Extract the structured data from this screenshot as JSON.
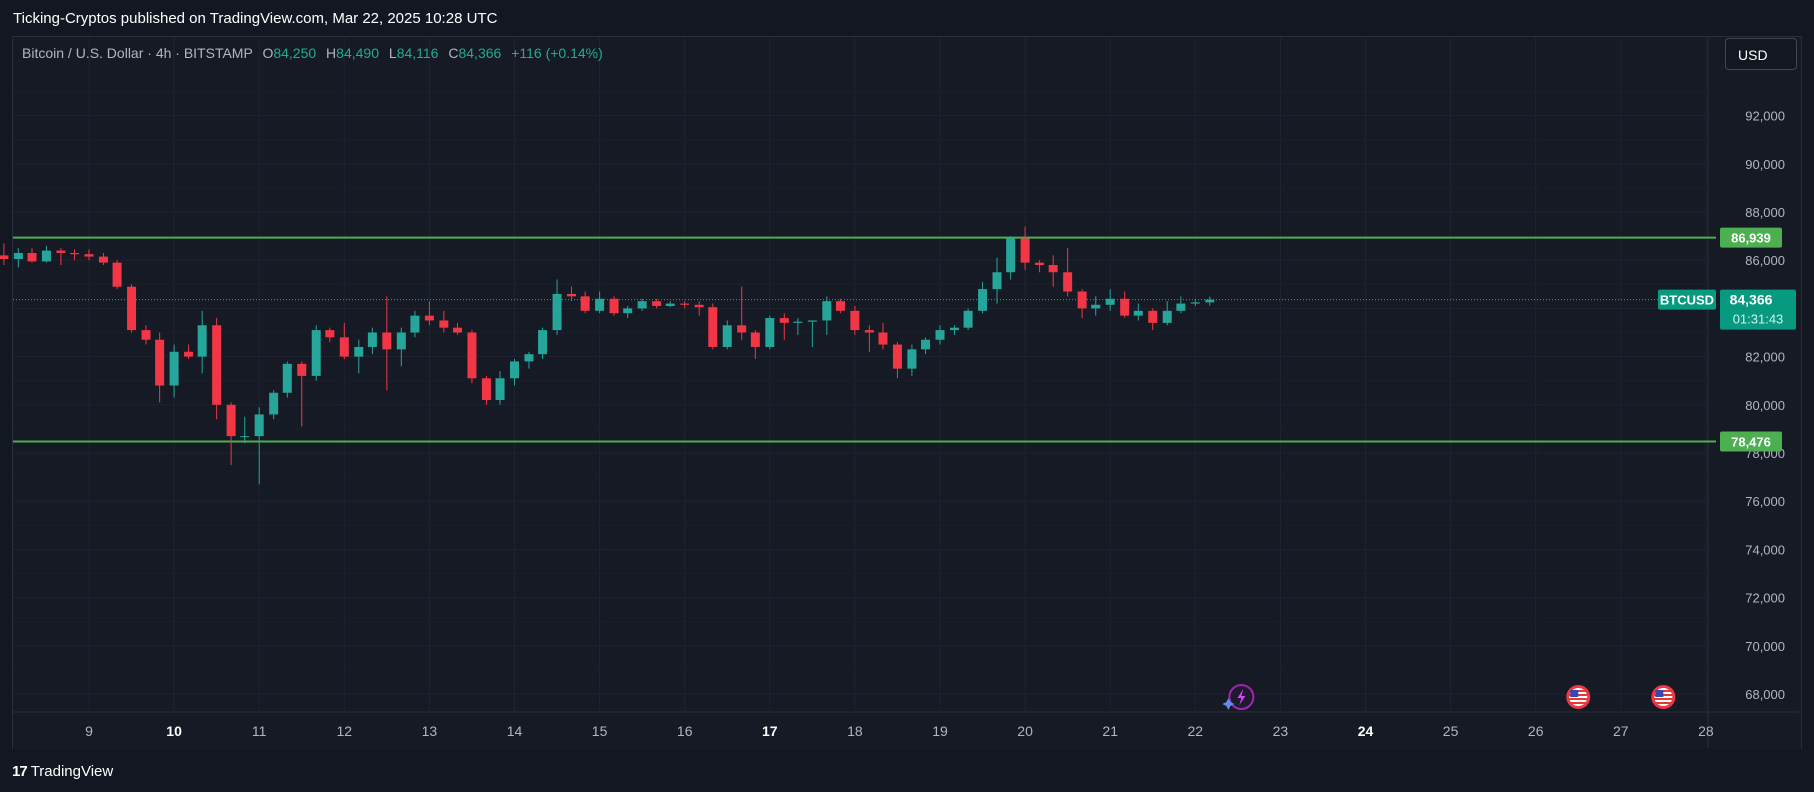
{
  "header": {
    "published_text": "Ticking-Cryptos published on TradingView.com, Mar 22, 2025 10:28 UTC"
  },
  "legend": {
    "symbol_text": "Bitcoin / U.S. Dollar · 4h · BITSTAMP",
    "open_label": "O",
    "open_value": "84,250",
    "high_label": "H",
    "high_value": "84,490",
    "low_label": "L",
    "low_value": "84,116",
    "close_label": "C",
    "close_value": "84,366",
    "change_text": "+116 (+0.14%)"
  },
  "currency_button": {
    "label": "USD"
  },
  "footer": {
    "brand": "TradingView",
    "logo_glyph": "17"
  },
  "colors": {
    "background": "#161a25",
    "grid": "#1f2330",
    "bull": "#26a69a",
    "bear": "#f23645",
    "level_line": "#4caf50",
    "last_price_tag": "#089981",
    "axis_text": "#b2b5be"
  },
  "icons": [
    "lightning-event-icon",
    "us-flag-event-icon",
    "us-flag-event-icon"
  ],
  "chart_data": {
    "type": "candlestick",
    "interval": "4h",
    "y_axis": {
      "ticks": [
        68000,
        70000,
        72000,
        74000,
        76000,
        78000,
        80000,
        82000,
        84000,
        86000,
        88000,
        90000,
        92000
      ],
      "tick_labels": [
        "68,000",
        "70,000",
        "72,000",
        "74,000",
        "76,000",
        "78,000",
        "80,000",
        "82,000",
        "84,000",
        "86,000",
        "88,000",
        "90,000",
        "92,000"
      ],
      "range": [
        67000,
        94000
      ],
      "side": "right"
    },
    "x_axis": {
      "ticks": [
        "9",
        "10",
        "11",
        "12",
        "13",
        "14",
        "15",
        "16",
        "17",
        "18",
        "19",
        "20",
        "21",
        "22",
        "23",
        "24",
        "25",
        "26",
        "27",
        "28"
      ],
      "bold_ticks": [
        "10",
        "17",
        "24"
      ],
      "range_days": [
        8.1,
        28.1
      ]
    },
    "grid": true,
    "horizontal_levels": [
      {
        "value": 86939,
        "label": "86,939"
      },
      {
        "value": 78476,
        "label": "78,476"
      }
    ],
    "last_price": {
      "symbol": "BTCUSD",
      "value": 84366,
      "label": "84,366",
      "countdown": "01:31:43"
    },
    "events": [
      {
        "day": 22.33,
        "kind": "lightning"
      },
      {
        "day": 26.5,
        "kind": "us-flag"
      },
      {
        "day": 27.5,
        "kind": "us-flag"
      }
    ],
    "candles": [
      [
        8.0,
        86200,
        86700,
        85800,
        86050
      ],
      [
        8.17,
        86050,
        86500,
        85700,
        86300
      ],
      [
        8.33,
        86300,
        86500,
        85900,
        85950
      ],
      [
        8.5,
        85950,
        86600,
        85900,
        86400
      ],
      [
        8.67,
        86400,
        86500,
        85800,
        86300
      ],
      [
        8.83,
        86300,
        86450,
        86000,
        86250
      ],
      [
        9.0,
        86250,
        86450,
        86000,
        86150
      ],
      [
        9.17,
        86150,
        86300,
        85800,
        85900
      ],
      [
        9.33,
        85900,
        86000,
        84800,
        84900
      ],
      [
        9.5,
        84900,
        85000,
        83000,
        83100
      ],
      [
        9.67,
        83100,
        83300,
        82500,
        82700
      ],
      [
        9.83,
        82700,
        83000,
        80100,
        80800
      ],
      [
        10.0,
        80800,
        82500,
        80300,
        82200
      ],
      [
        10.17,
        82200,
        82500,
        81900,
        82000
      ],
      [
        10.33,
        82000,
        83900,
        81300,
        83300
      ],
      [
        10.5,
        83300,
        83600,
        79400,
        80000
      ],
      [
        10.67,
        80000,
        80100,
        77500,
        78700
      ],
      [
        10.83,
        78700,
        79500,
        78400,
        78700
      ],
      [
        11.0,
        78700,
        79900,
        76700,
        79600
      ],
      [
        11.17,
        79600,
        80600,
        79400,
        80500
      ],
      [
        11.33,
        80500,
        81800,
        80300,
        81700
      ],
      [
        11.5,
        81700,
        81800,
        79100,
        81200
      ],
      [
        11.67,
        81200,
        83300,
        81000,
        83100
      ],
      [
        11.83,
        83100,
        83200,
        82600,
        82800
      ],
      [
        12.0,
        82800,
        83400,
        81900,
        82000
      ],
      [
        12.17,
        82000,
        82700,
        81300,
        82400
      ],
      [
        12.33,
        82400,
        83200,
        82100,
        83000
      ],
      [
        12.5,
        83000,
        84500,
        80600,
        82300
      ],
      [
        12.67,
        82300,
        83200,
        81600,
        83000
      ],
      [
        12.83,
        83000,
        83900,
        82800,
        83700
      ],
      [
        13.0,
        83700,
        84300,
        83300,
        83500
      ],
      [
        13.17,
        83500,
        83900,
        83000,
        83200
      ],
      [
        13.33,
        83200,
        83400,
        82900,
        83000
      ],
      [
        13.5,
        83000,
        83100,
        80900,
        81100
      ],
      [
        13.67,
        81100,
        81200,
        80000,
        80200
      ],
      [
        13.83,
        80200,
        81400,
        80000,
        81100
      ],
      [
        14.0,
        81100,
        81900,
        80800,
        81800
      ],
      [
        14.17,
        81800,
        82200,
        81500,
        82100
      ],
      [
        14.33,
        82100,
        83200,
        81900,
        83100
      ],
      [
        14.5,
        83100,
        85200,
        82900,
        84600
      ],
      [
        14.67,
        84600,
        84900,
        84300,
        84500
      ],
      [
        14.83,
        84500,
        84700,
        83800,
        83900
      ],
      [
        15.0,
        83900,
        84700,
        83800,
        84400
      ],
      [
        15.17,
        84400,
        84500,
        83700,
        83800
      ],
      [
        15.33,
        83800,
        84100,
        83600,
        84000
      ],
      [
        15.5,
        84000,
        84400,
        83900,
        84300
      ],
      [
        15.67,
        84300,
        84400,
        84000,
        84100
      ],
      [
        15.83,
        84100,
        84300,
        84050,
        84200
      ],
      [
        16.0,
        84200,
        84300,
        84000,
        84150
      ],
      [
        16.17,
        84150,
        84300,
        83700,
        84050
      ],
      [
        16.33,
        84050,
        84200,
        82300,
        82400
      ],
      [
        16.5,
        82400,
        83500,
        82300,
        83300
      ],
      [
        16.67,
        83300,
        84900,
        82700,
        83000
      ],
      [
        16.83,
        83000,
        83100,
        81900,
        82400
      ],
      [
        17.0,
        82400,
        83700,
        82300,
        83600
      ],
      [
        17.17,
        83600,
        83800,
        82700,
        83400
      ],
      [
        17.33,
        83400,
        83600,
        82900,
        83450
      ],
      [
        17.5,
        83450,
        83500,
        82400,
        83500
      ],
      [
        17.67,
        83500,
        84500,
        82900,
        84300
      ],
      [
        17.83,
        84300,
        84400,
        83800,
        83900
      ],
      [
        18.0,
        83900,
        84100,
        82900,
        83100
      ],
      [
        18.17,
        83100,
        83300,
        82200,
        83000
      ],
      [
        18.33,
        83000,
        83400,
        82300,
        82500
      ],
      [
        18.5,
        82500,
        82600,
        81100,
        81500
      ],
      [
        18.67,
        81500,
        82500,
        81200,
        82300
      ],
      [
        18.83,
        82300,
        82800,
        82100,
        82700
      ],
      [
        19.0,
        82700,
        83300,
        82500,
        83100
      ],
      [
        19.17,
        83100,
        83300,
        82900,
        83200
      ],
      [
        19.33,
        83200,
        84000,
        83100,
        83900
      ],
      [
        19.5,
        83900,
        85100,
        83800,
        84800
      ],
      [
        19.67,
        84800,
        86100,
        84200,
        85500
      ],
      [
        19.83,
        85500,
        87000,
        85200,
        86900
      ],
      [
        20.0,
        86900,
        87400,
        85600,
        85900
      ],
      [
        20.17,
        85900,
        86000,
        85500,
        85800
      ],
      [
        20.33,
        85800,
        86200,
        84900,
        85500
      ],
      [
        20.5,
        85500,
        86500,
        84500,
        84700
      ],
      [
        20.67,
        84700,
        84800,
        83600,
        84000
      ],
      [
        20.83,
        84000,
        84500,
        83700,
        84150
      ],
      [
        21.0,
        84150,
        84800,
        83900,
        84400
      ],
      [
        21.17,
        84400,
        84700,
        83600,
        83700
      ],
      [
        21.33,
        83700,
        84200,
        83500,
        83900
      ],
      [
        21.5,
        83900,
        84000,
        83100,
        83400
      ],
      [
        21.67,
        83400,
        84300,
        83300,
        83900
      ],
      [
        21.83,
        83900,
        84500,
        83800,
        84200
      ],
      [
        22.0,
        84200,
        84400,
        84100,
        84250
      ],
      [
        22.17,
        84250,
        84490,
        84116,
        84366
      ]
    ]
  }
}
